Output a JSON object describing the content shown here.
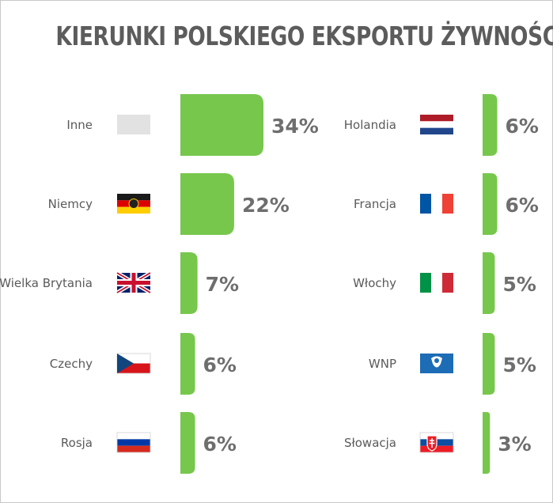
{
  "colors": {
    "bar": "#77c74d",
    "text": "#5c5c5c",
    "placeholder_flag": "#e2e2e2"
  },
  "chart_data": {
    "type": "bar",
    "title": "KIERUNKI POLSKIEGO EKSPORTU ŻYWNOŚCI:",
    "unit": "%",
    "xlim": [
      0,
      34
    ],
    "columns": [
      {
        "categories": [
          "Inne",
          "Niemcy",
          "Wielka Brytania",
          "Czechy",
          "Rosja"
        ],
        "values": [
          34,
          22,
          7,
          6,
          6
        ],
        "value_labels": [
          "34%",
          "22%",
          "7%",
          "6%",
          "6%"
        ],
        "flags": [
          "blank",
          "de",
          "gb",
          "cz",
          "ru"
        ]
      },
      {
        "categories": [
          "Holandia",
          "Francja",
          "Włochy",
          "WNP",
          "Słowacja"
        ],
        "values": [
          6,
          6,
          5,
          5,
          3
        ],
        "value_labels": [
          "6%",
          "6%",
          "5%",
          "5%",
          "3%"
        ],
        "flags": [
          "nl",
          "fr",
          "it",
          "cis",
          "sk"
        ]
      }
    ]
  }
}
